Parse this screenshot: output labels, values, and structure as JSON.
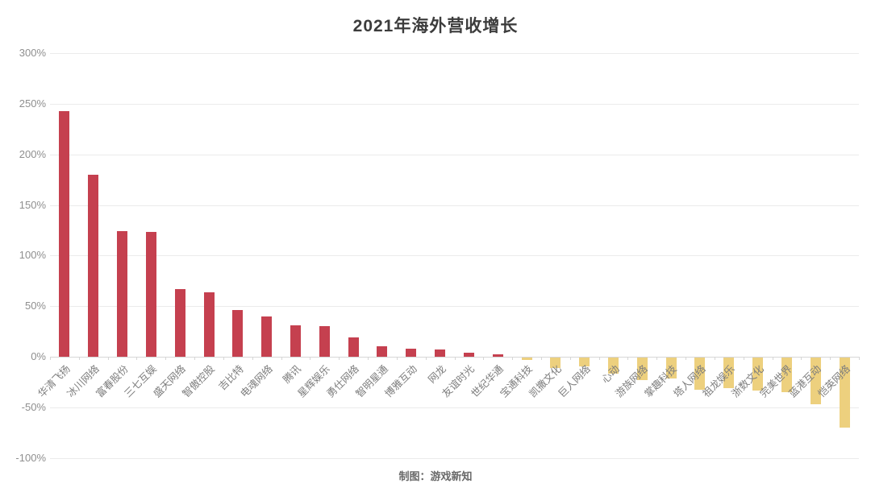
{
  "chart_data": {
    "type": "bar",
    "title": "2021年海外营收增长",
    "categories": [
      "华清飞扬",
      "冰川网络",
      "富春股份",
      "三七互娱",
      "盛天网络",
      "智傲控股",
      "吉比特",
      "电魂网络",
      "腾讯",
      "星辉娱乐",
      "勇仕网络",
      "智明星通",
      "博雅互动",
      "网龙",
      "友谊时光",
      "世纪华通",
      "宝通科技",
      "凯撒文化",
      "巨人网络",
      "心动",
      "游族网络",
      "掌趣科技",
      "塔人网络",
      "祖龙娱乐",
      "浙数文化",
      "完美世界",
      "蓝港互动",
      "恺英网络"
    ],
    "values": [
      243,
      180,
      124,
      123,
      67,
      64,
      46,
      40,
      31,
      30,
      19,
      10,
      8,
      7,
      4,
      2,
      -2,
      -10,
      -9,
      -16,
      -22,
      -21,
      -32,
      -30,
      -33,
      -34,
      -46,
      -69
    ],
    "unit": "%",
    "xlabel": "",
    "ylabel": "",
    "ylim": [
      -100,
      300
    ],
    "yticks": [
      300,
      250,
      200,
      150,
      100,
      50,
      0,
      -50,
      -100
    ],
    "ytick_suffix": "%",
    "grid": true,
    "legend": "none",
    "positive_color": "#c5404f",
    "negative_color": "#edd07e"
  },
  "footer": {
    "credit": "制图：游戏新知"
  }
}
